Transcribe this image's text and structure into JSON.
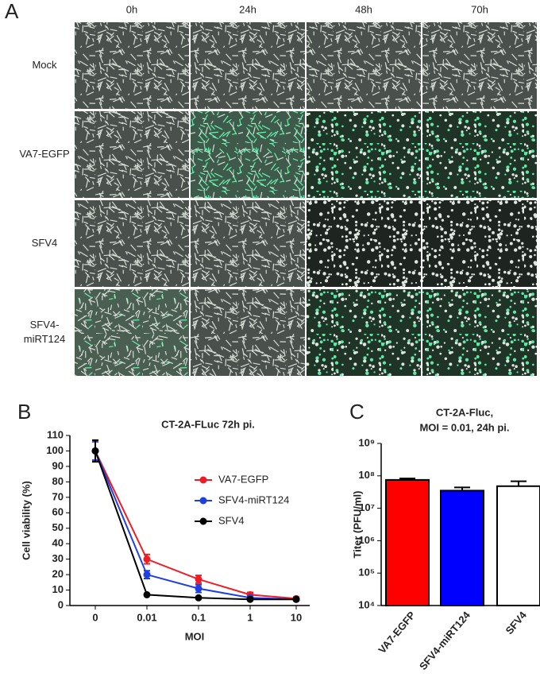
{
  "panel_a": {
    "label": "A",
    "columns": [
      "0h",
      "24h",
      "48h",
      "70h"
    ],
    "rows": [
      [
        "Mock"
      ],
      [
        "VA7-EGFP"
      ],
      [
        "SFV4"
      ],
      [
        "SFV4-",
        "miRT124"
      ]
    ]
  },
  "chart_data": [
    {
      "type": "line",
      "label": "B",
      "title": "CT-2A-FLuc 72h pi.",
      "x_label": "MOI",
      "y_label": "Cell viability (%)",
      "categories": [
        "0",
        "0.01",
        "0.1",
        "1",
        "10"
      ],
      "ylim": [
        0,
        110
      ],
      "yticks": [
        0,
        10,
        20,
        30,
        40,
        50,
        60,
        70,
        80,
        90,
        100,
        110
      ],
      "legend": "right",
      "series": [
        {
          "name": "VA7-EGFP",
          "color": "#ee1c24",
          "values": [
            100,
            30,
            17,
            7,
            4.5
          ],
          "errors": [
            6,
            3,
            2.5,
            1.5,
            1
          ]
        },
        {
          "name": "SFV4-miRT124",
          "color": "#1f3fe0",
          "values": [
            100,
            20,
            11,
            5,
            4
          ],
          "errors": [
            6,
            2.5,
            2.5,
            1,
            1
          ]
        },
        {
          "name": "SFV4",
          "color": "#000000",
          "values": [
            100,
            7,
            5,
            4,
            4
          ],
          "errors": [
            7,
            0.5,
            0.5,
            0.5,
            0.5
          ]
        }
      ]
    },
    {
      "type": "bar",
      "label": "C",
      "title": [
        "CT-2A-Fluc,",
        "MOI = 0.01, 24h pi."
      ],
      "y_label": "Titer (PFU/ml)",
      "log_scale": true,
      "categories": [
        "VA7-EGFP",
        "SFV4-miRT124",
        "SFV4"
      ],
      "values": [
        75000000,
        35000000,
        48000000
      ],
      "errors": [
        8000000,
        9000000,
        20000000
      ],
      "colors": [
        "#ff0000",
        "#0000ff",
        "#ffffff"
      ],
      "ylim": [
        10000,
        1000000000
      ],
      "yticks": [
        {
          "value": 10000,
          "label": "10⁴"
        },
        {
          "value": 100000,
          "label": "10⁵"
        },
        {
          "value": 1000000,
          "label": "10⁶"
        },
        {
          "value": 10000000,
          "label": "10⁷"
        },
        {
          "value": 100000000,
          "label": "10⁸"
        },
        {
          "value": 1000000000,
          "label": "10⁹"
        }
      ]
    }
  ]
}
